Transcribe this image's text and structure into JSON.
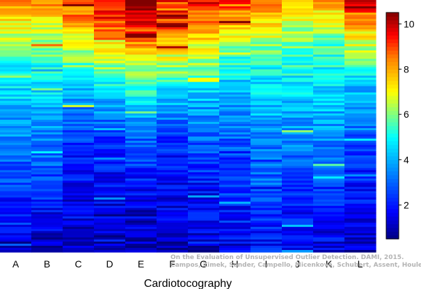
{
  "chart_data": {
    "type": "heatmap",
    "xlabel": "Cardiotocography",
    "categories": [
      "A",
      "B",
      "C",
      "D",
      "E",
      "F",
      "G",
      "H",
      "I",
      "J",
      "K",
      "L"
    ],
    "colorbar": {
      "min": 0.5,
      "max": 10.5,
      "ticks": [
        2,
        4,
        6,
        8,
        10
      ],
      "colors": [
        "#000080",
        "#0000cc",
        "#0000ff",
        "#0050ff",
        "#0096ff",
        "#00ccff",
        "#40ffbf",
        "#a0ff60",
        "#ffe000",
        "#ff9000",
        "#ff2000",
        "#b00000",
        "#800000"
      ]
    },
    "row_count": 120,
    "column_profiles": [
      {
        "column": "A",
        "levels_top_to_bottom": [
          8.5,
          7,
          6,
          5,
          4.5,
          4,
          3.5,
          3,
          2.5,
          2,
          1.5,
          1
        ]
      },
      {
        "column": "B",
        "levels_top_to_bottom": [
          8.5,
          7,
          6,
          5,
          4.5,
          4,
          3.5,
          3,
          2.5,
          2,
          1.5,
          1
        ]
      },
      {
        "column": "C",
        "levels_top_to_bottom": [
          9,
          8,
          6.5,
          5.5,
          4,
          3,
          2.5,
          2,
          1.8,
          1.5,
          1.2,
          1
        ]
      },
      {
        "column": "D",
        "levels_top_to_bottom": [
          10,
          9,
          7.5,
          6,
          4.5,
          3.5,
          2.5,
          2,
          1.8,
          1.5,
          1.2,
          1
        ]
      },
      {
        "column": "E",
        "levels_top_to_bottom": [
          10.5,
          9.5,
          8,
          6.5,
          5,
          4,
          3,
          2.5,
          2,
          1.5,
          1.2,
          1
        ]
      },
      {
        "column": "F",
        "levels_top_to_bottom": [
          10,
          9,
          7.5,
          6,
          4.5,
          3.5,
          2.5,
          2,
          1.8,
          1.5,
          1.2,
          1
        ]
      },
      {
        "column": "G",
        "levels_top_to_bottom": [
          9.5,
          8.5,
          7,
          6,
          4.5,
          3.5,
          3,
          2.5,
          2,
          1.8,
          1.5,
          1
        ]
      },
      {
        "column": "H",
        "levels_top_to_bottom": [
          9,
          8,
          6,
          5,
          4,
          3.5,
          3,
          2.5,
          2.5,
          2,
          2,
          1.5
        ]
      },
      {
        "column": "I",
        "levels_top_to_bottom": [
          8.5,
          7.5,
          6,
          5,
          4.5,
          4,
          3.5,
          3,
          3,
          2.5,
          2,
          2
        ]
      },
      {
        "column": "J",
        "levels_top_to_bottom": [
          8,
          6.5,
          6,
          5,
          4.5,
          4,
          3.5,
          3,
          2.5,
          2,
          1.8,
          1.5
        ]
      },
      {
        "column": "K",
        "levels_top_to_bottom": [
          8,
          6.5,
          5.5,
          5,
          4.5,
          4,
          3.5,
          3,
          2.5,
          2,
          1.8,
          1.5
        ]
      },
      {
        "column": "L",
        "levels_top_to_bottom": [
          9.5,
          8,
          6.5,
          5,
          4,
          3.5,
          3,
          2.5,
          2,
          1.8,
          1.5,
          1
        ]
      }
    ]
  },
  "watermark": {
    "line1": "On the Evaluation of Unsupervised Outlier Detection. DAMI, 2015.",
    "line2": "Campos, Zimek, Sander, Campello, Micenková, Schubert, Assent, Houle"
  }
}
